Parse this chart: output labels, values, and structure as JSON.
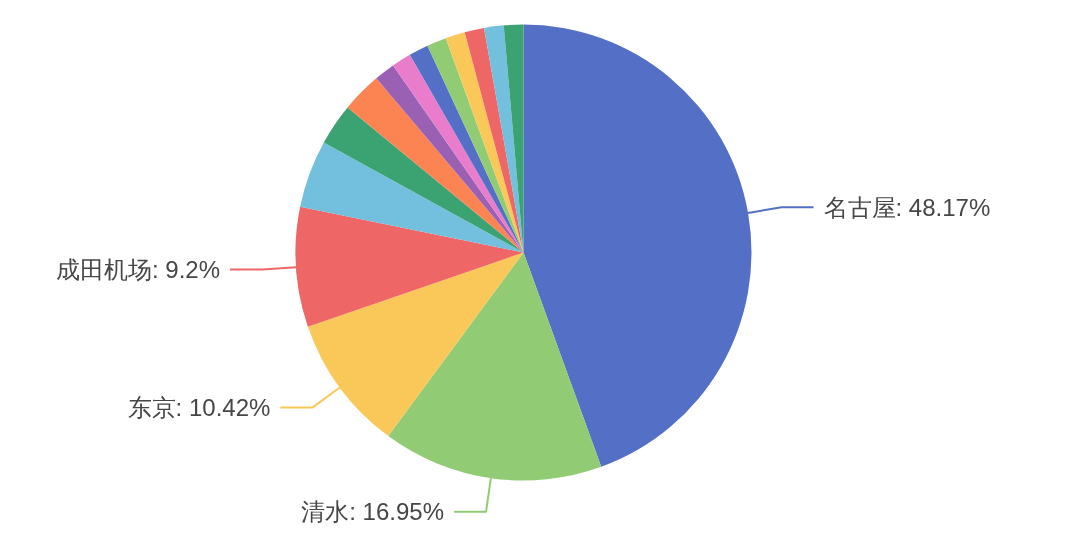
{
  "chart_data": {
    "type": "pie",
    "categories": [
      "名古屋",
      "清水",
      "东京",
      "成田机场",
      null,
      null,
      null,
      null,
      null,
      null,
      null,
      null,
      null,
      null,
      null
    ],
    "values": [
      48.17,
      16.95,
      10.42,
      9.2,
      5.2,
      3.2,
      3.1,
      1.6,
      1.5,
      1.5,
      1.5,
      1.5,
      1.5,
      1.5,
      1.5
    ],
    "value_labels": [
      "48.17%",
      "16.95%",
      "10.42%",
      "9.2%",
      null,
      null,
      null,
      null,
      null,
      null,
      null,
      null,
      null,
      null,
      null
    ],
    "colors": [
      "#5470c6",
      "#91cc75",
      "#fac858",
      "#ee6666",
      "#73c0de",
      "#3ba272",
      "#fc8452",
      "#9a60b4",
      "#ea7ccc",
      "#5470c6",
      "#91cc75",
      "#fac858",
      "#ee6666",
      "#73c0de",
      "#3ba272"
    ]
  }
}
